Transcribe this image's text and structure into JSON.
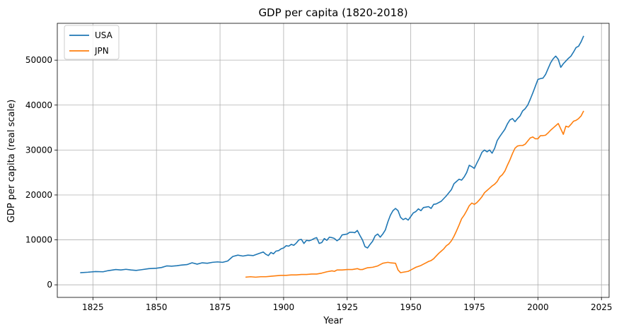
{
  "chart_data": {
    "type": "line",
    "title": "GDP per capita (1820-2018)",
    "xlabel": "Year",
    "ylabel": "GDP per capita (real scale)",
    "xlim": [
      1811,
      2028
    ],
    "ylim": [
      -2800,
      58200
    ],
    "xticks": [
      1825,
      1850,
      1875,
      1900,
      1925,
      1950,
      1975,
      2000,
      2025
    ],
    "yticks": [
      0,
      10000,
      20000,
      30000,
      40000,
      50000
    ],
    "grid": true,
    "legend_position": "top-left",
    "series": [
      {
        "name": "USA",
        "color": "#1f77b4",
        "points": [
          [
            1820,
            2700
          ],
          [
            1823,
            2800
          ],
          [
            1826,
            2950
          ],
          [
            1829,
            2900
          ],
          [
            1831,
            3150
          ],
          [
            1834,
            3400
          ],
          [
            1836,
            3300
          ],
          [
            1838,
            3450
          ],
          [
            1840,
            3300
          ],
          [
            1842,
            3200
          ],
          [
            1844,
            3350
          ],
          [
            1847,
            3600
          ],
          [
            1850,
            3700
          ],
          [
            1852,
            3850
          ],
          [
            1854,
            4200
          ],
          [
            1856,
            4150
          ],
          [
            1858,
            4250
          ],
          [
            1860,
            4400
          ],
          [
            1862,
            4500
          ],
          [
            1864,
            4900
          ],
          [
            1866,
            4600
          ],
          [
            1868,
            4900
          ],
          [
            1870,
            4800
          ],
          [
            1872,
            5000
          ],
          [
            1874,
            5100
          ],
          [
            1876,
            5000
          ],
          [
            1878,
            5300
          ],
          [
            1880,
            6300
          ],
          [
            1882,
            6600
          ],
          [
            1884,
            6400
          ],
          [
            1886,
            6600
          ],
          [
            1888,
            6500
          ],
          [
            1890,
            6900
          ],
          [
            1892,
            7300
          ],
          [
            1893,
            6800
          ],
          [
            1894,
            6500
          ],
          [
            1895,
            7200
          ],
          [
            1896,
            6900
          ],
          [
            1897,
            7500
          ],
          [
            1898,
            7600
          ],
          [
            1899,
            8000
          ],
          [
            1900,
            8200
          ],
          [
            1901,
            8700
          ],
          [
            1902,
            8600
          ],
          [
            1903,
            9000
          ],
          [
            1904,
            8800
          ],
          [
            1905,
            9300
          ],
          [
            1906,
            10000
          ],
          [
            1907,
            10100
          ],
          [
            1908,
            9200
          ],
          [
            1909,
            9900
          ],
          [
            1910,
            9800
          ],
          [
            1911,
            10000
          ],
          [
            1912,
            10300
          ],
          [
            1913,
            10500
          ],
          [
            1914,
            9200
          ],
          [
            1915,
            9400
          ],
          [
            1916,
            10300
          ],
          [
            1917,
            9900
          ],
          [
            1918,
            10600
          ],
          [
            1919,
            10500
          ],
          [
            1920,
            10300
          ],
          [
            1921,
            9800
          ],
          [
            1922,
            10200
          ],
          [
            1923,
            11100
          ],
          [
            1924,
            11200
          ],
          [
            1925,
            11300
          ],
          [
            1926,
            11700
          ],
          [
            1927,
            11700
          ],
          [
            1928,
            11600
          ],
          [
            1929,
            12100
          ],
          [
            1930,
            11000
          ],
          [
            1931,
            10000
          ],
          [
            1932,
            8500
          ],
          [
            1933,
            8200
          ],
          [
            1934,
            9000
          ],
          [
            1935,
            9700
          ],
          [
            1936,
            10900
          ],
          [
            1937,
            11300
          ],
          [
            1938,
            10600
          ],
          [
            1939,
            11300
          ],
          [
            1940,
            12200
          ],
          [
            1941,
            14000
          ],
          [
            1942,
            15500
          ],
          [
            1943,
            16500
          ],
          [
            1944,
            17000
          ],
          [
            1945,
            16500
          ],
          [
            1946,
            15000
          ],
          [
            1947,
            14500
          ],
          [
            1948,
            14800
          ],
          [
            1949,
            14400
          ],
          [
            1950,
            15200
          ],
          [
            1951,
            16000
          ],
          [
            1952,
            16300
          ],
          [
            1953,
            16900
          ],
          [
            1954,
            16500
          ],
          [
            1955,
            17200
          ],
          [
            1956,
            17300
          ],
          [
            1957,
            17400
          ],
          [
            1958,
            17000
          ],
          [
            1959,
            17900
          ],
          [
            1960,
            18000
          ],
          [
            1962,
            18600
          ],
          [
            1964,
            19800
          ],
          [
            1966,
            21200
          ],
          [
            1967,
            22500
          ],
          [
            1968,
            23000
          ],
          [
            1969,
            23500
          ],
          [
            1970,
            23300
          ],
          [
            1971,
            24000
          ],
          [
            1972,
            25000
          ],
          [
            1973,
            26600
          ],
          [
            1974,
            26300
          ],
          [
            1975,
            25900
          ],
          [
            1976,
            27100
          ],
          [
            1977,
            28200
          ],
          [
            1978,
            29500
          ],
          [
            1979,
            30000
          ],
          [
            1980,
            29600
          ],
          [
            1981,
            30000
          ],
          [
            1982,
            29300
          ],
          [
            1983,
            30400
          ],
          [
            1984,
            32100
          ],
          [
            1985,
            33000
          ],
          [
            1986,
            33800
          ],
          [
            1987,
            34600
          ],
          [
            1988,
            35800
          ],
          [
            1989,
            36700
          ],
          [
            1990,
            37000
          ],
          [
            1991,
            36300
          ],
          [
            1992,
            37000
          ],
          [
            1993,
            37600
          ],
          [
            1994,
            38700
          ],
          [
            1995,
            39200
          ],
          [
            1996,
            40000
          ],
          [
            1997,
            41300
          ],
          [
            1998,
            42700
          ],
          [
            1999,
            44200
          ],
          [
            2000,
            45700
          ],
          [
            2001,
            45900
          ],
          [
            2002,
            46000
          ],
          [
            2003,
            46800
          ],
          [
            2004,
            48100
          ],
          [
            2005,
            49400
          ],
          [
            2006,
            50300
          ],
          [
            2007,
            50900
          ],
          [
            2008,
            50200
          ],
          [
            2009,
            48400
          ],
          [
            2010,
            49200
          ],
          [
            2011,
            49800
          ],
          [
            2012,
            50400
          ],
          [
            2013,
            50900
          ],
          [
            2014,
            51800
          ],
          [
            2015,
            52800
          ],
          [
            2016,
            53100
          ],
          [
            2017,
            54100
          ],
          [
            2018,
            55400
          ]
        ]
      },
      {
        "name": "JPN",
        "color": "#ff7f0e",
        "points": [
          [
            1885,
            1700
          ],
          [
            1887,
            1800
          ],
          [
            1889,
            1700
          ],
          [
            1891,
            1800
          ],
          [
            1893,
            1800
          ],
          [
            1895,
            1900
          ],
          [
            1897,
            2000
          ],
          [
            1899,
            2100
          ],
          [
            1901,
            2100
          ],
          [
            1903,
            2200
          ],
          [
            1905,
            2200
          ],
          [
            1907,
            2300
          ],
          [
            1909,
            2300
          ],
          [
            1911,
            2400
          ],
          [
            1913,
            2400
          ],
          [
            1915,
            2600
          ],
          [
            1917,
            2900
          ],
          [
            1919,
            3100
          ],
          [
            1920,
            3000
          ],
          [
            1921,
            3300
          ],
          [
            1923,
            3300
          ],
          [
            1925,
            3400
          ],
          [
            1927,
            3400
          ],
          [
            1929,
            3600
          ],
          [
            1930,
            3400
          ],
          [
            1931,
            3400
          ],
          [
            1932,
            3600
          ],
          [
            1933,
            3800
          ],
          [
            1935,
            3900
          ],
          [
            1937,
            4200
          ],
          [
            1939,
            4800
          ],
          [
            1940,
            4900
          ],
          [
            1941,
            5000
          ],
          [
            1942,
            4900
          ],
          [
            1944,
            4800
          ],
          [
            1945,
            3300
          ],
          [
            1946,
            2700
          ],
          [
            1947,
            2800
          ],
          [
            1948,
            2900
          ],
          [
            1949,
            3000
          ],
          [
            1950,
            3300
          ],
          [
            1951,
            3600
          ],
          [
            1952,
            3900
          ],
          [
            1953,
            4100
          ],
          [
            1954,
            4300
          ],
          [
            1955,
            4600
          ],
          [
            1956,
            4900
          ],
          [
            1957,
            5200
          ],
          [
            1958,
            5400
          ],
          [
            1959,
            5800
          ],
          [
            1960,
            6400
          ],
          [
            1961,
            7000
          ],
          [
            1962,
            7500
          ],
          [
            1963,
            8000
          ],
          [
            1964,
            8700
          ],
          [
            1965,
            9100
          ],
          [
            1966,
            9800
          ],
          [
            1967,
            10800
          ],
          [
            1968,
            12000
          ],
          [
            1969,
            13300
          ],
          [
            1970,
            14700
          ],
          [
            1971,
            15500
          ],
          [
            1972,
            16500
          ],
          [
            1973,
            17600
          ],
          [
            1974,
            18200
          ],
          [
            1975,
            17900
          ],
          [
            1976,
            18300
          ],
          [
            1977,
            18900
          ],
          [
            1978,
            19600
          ],
          [
            1979,
            20500
          ],
          [
            1980,
            21000
          ],
          [
            1981,
            21500
          ],
          [
            1982,
            22000
          ],
          [
            1983,
            22400
          ],
          [
            1984,
            23000
          ],
          [
            1985,
            24000
          ],
          [
            1986,
            24500
          ],
          [
            1987,
            25300
          ],
          [
            1988,
            26600
          ],
          [
            1989,
            27800
          ],
          [
            1990,
            29200
          ],
          [
            1991,
            30400
          ],
          [
            1992,
            30900
          ],
          [
            1993,
            31000
          ],
          [
            1994,
            31000
          ],
          [
            1995,
            31300
          ],
          [
            1996,
            32000
          ],
          [
            1997,
            32700
          ],
          [
            1998,
            32900
          ],
          [
            1999,
            32500
          ],
          [
            2000,
            32500
          ],
          [
            2001,
            33200
          ],
          [
            2002,
            33200
          ],
          [
            2003,
            33300
          ],
          [
            2004,
            33800
          ],
          [
            2005,
            34400
          ],
          [
            2006,
            34900
          ],
          [
            2007,
            35400
          ],
          [
            2008,
            35900
          ],
          [
            2009,
            34700
          ],
          [
            2010,
            33500
          ],
          [
            2011,
            35300
          ],
          [
            2012,
            35100
          ],
          [
            2013,
            35700
          ],
          [
            2014,
            36400
          ],
          [
            2015,
            36600
          ],
          [
            2016,
            37000
          ],
          [
            2017,
            37600
          ],
          [
            2018,
            38700
          ]
        ]
      }
    ]
  }
}
